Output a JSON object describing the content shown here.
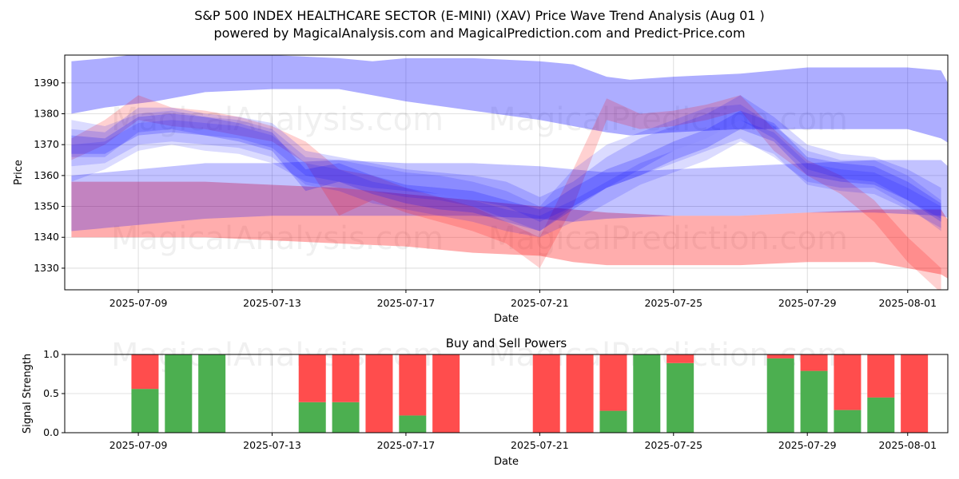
{
  "header": {
    "title_line1": "S&P 500 INDEX HEALTHCARE SECTOR (E-MINI) (XAV) Price Wave Trend Analysis (Aug 01 )",
    "title_line2": "powered by MagicalAnalysis.com and MagicalPrediction.com and Predict-Price.com"
  },
  "watermarks": [
    "MagicalAnalysis.com",
    "MagicalPrediction.com"
  ],
  "chart_data": [
    {
      "type": "area",
      "title": "",
      "xlabel": "Date",
      "ylabel": "Price",
      "xlim": [
        "2025-07-06.8",
        "2025-08-02.2"
      ],
      "ylim": [
        1323,
        1399
      ],
      "x_ticks": [
        "2025-07-09",
        "2025-07-13",
        "2025-07-17",
        "2025-07-21",
        "2025-07-25",
        "2025-07-29",
        "2025-08-01"
      ],
      "y_ticks": [
        1330,
        1340,
        1350,
        1360,
        1370,
        1380,
        1390
      ],
      "grid": true,
      "colors": {
        "blue": "#0000ff",
        "red": "#ff0000"
      },
      "bands": [
        {
          "name": "wide-blue-upper",
          "color": "blue",
          "opacity": 0.32,
          "x": [
            0,
            1,
            2.5,
            4,
            6,
            8,
            9,
            10,
            12,
            14,
            15,
            16,
            16.7,
            18,
            20,
            22,
            24,
            25,
            26,
            26.3
          ],
          "upper": [
            1397,
            1398,
            1400,
            1400,
            1399,
            1398,
            1397,
            1398,
            1398,
            1397,
            1396,
            1392,
            1391,
            1392,
            1393,
            1395,
            1395,
            1395,
            1394,
            1388
          ],
          "lower": [
            1380,
            1382,
            1384,
            1387,
            1388,
            1388,
            1386,
            1384,
            1381,
            1378,
            1376,
            1374,
            1373,
            1374,
            1375,
            1375,
            1375,
            1375,
            1372,
            1370
          ]
        },
        {
          "name": "long-red-lower",
          "color": "red",
          "opacity": 0.32,
          "x": [
            0,
            2,
            4,
            6,
            8,
            10,
            12,
            14,
            15,
            16,
            18,
            20,
            22,
            24,
            26,
            26.3
          ],
          "upper": [
            1358,
            1358,
            1358,
            1357,
            1356,
            1354,
            1352,
            1350,
            1349,
            1348,
            1347,
            1347,
            1348,
            1349,
            1349,
            1344
          ],
          "lower": [
            1340,
            1340,
            1340,
            1339,
            1338,
            1337,
            1335,
            1334,
            1332,
            1331,
            1331,
            1331,
            1332,
            1332,
            1328,
            1326
          ]
        },
        {
          "name": "long-purple-mid",
          "color": "blue",
          "opacity": 0.24,
          "x": [
            0,
            2,
            4,
            6,
            8,
            10,
            12,
            14,
            15,
            16,
            18,
            20,
            22,
            24,
            26,
            26.3
          ],
          "upper": [
            1360,
            1362,
            1364,
            1364,
            1365,
            1364,
            1364,
            1363,
            1362,
            1361,
            1362,
            1363,
            1364,
            1365,
            1365,
            1362
          ],
          "lower": [
            1342,
            1344,
            1346,
            1347,
            1347,
            1347,
            1347,
            1346,
            1345,
            1346,
            1347,
            1347,
            1348,
            1348,
            1347,
            1346
          ]
        },
        {
          "name": "wave-red-a",
          "color": "red",
          "opacity": 0.18,
          "x": [
            0,
            1,
            2,
            3,
            4,
            5,
            6,
            7,
            8,
            9,
            10,
            11,
            12,
            13,
            14,
            15,
            16,
            17,
            18,
            19,
            20,
            21,
            22,
            23,
            24,
            25,
            26
          ],
          "upper": [
            1372,
            1378,
            1386,
            1382,
            1381,
            1379,
            1376,
            1371,
            1362,
            1360,
            1356,
            1353,
            1350,
            1345,
            1340,
            1362,
            1385,
            1380,
            1381,
            1383,
            1386,
            1375,
            1365,
            1360,
            1352,
            1340,
            1330
          ],
          "lower": [
            1365,
            1370,
            1378,
            1376,
            1375,
            1373,
            1371,
            1364,
            1347,
            1352,
            1348,
            1345,
            1342,
            1338,
            1330,
            1350,
            1378,
            1375,
            1376,
            1378,
            1381,
            1368,
            1360,
            1354,
            1345,
            1332,
            1322
          ]
        },
        {
          "name": "wave-blue-a",
          "color": "blue",
          "opacity": 0.16,
          "x": [
            0,
            1,
            2,
            3,
            4,
            5,
            6,
            7,
            8,
            9,
            10,
            11,
            12,
            13,
            14,
            15,
            16,
            17,
            18,
            19,
            20,
            21,
            22,
            23,
            24,
            25,
            26
          ],
          "upper": [
            1375,
            1374,
            1382,
            1382,
            1380,
            1379,
            1377,
            1368,
            1366,
            1364,
            1362,
            1361,
            1360,
            1358,
            1353,
            1358,
            1366,
            1372,
            1376,
            1380,
            1386,
            1379,
            1370,
            1367,
            1366,
            1362,
            1356
          ],
          "lower": [
            1366,
            1366,
            1374,
            1375,
            1373,
            1372,
            1369,
            1360,
            1358,
            1356,
            1355,
            1354,
            1352,
            1350,
            1345,
            1350,
            1356,
            1362,
            1368,
            1372,
            1378,
            1372,
            1362,
            1359,
            1358,
            1352,
            1346
          ]
        },
        {
          "name": "wave-blue-b",
          "color": "blue",
          "opacity": 0.14,
          "x": [
            0,
            1,
            2,
            3,
            4,
            5,
            6,
            7,
            8,
            9,
            10,
            11,
            12,
            13,
            14,
            15,
            16,
            17,
            18,
            19,
            20,
            21,
            22,
            23,
            24,
            25,
            26
          ],
          "upper": [
            1378,
            1376,
            1380,
            1381,
            1379,
            1378,
            1375,
            1366,
            1365,
            1363,
            1361,
            1360,
            1358,
            1355,
            1350,
            1362,
            1370,
            1374,
            1378,
            1382,
            1383,
            1376,
            1368,
            1365,
            1365,
            1360,
            1352
          ],
          "lower": [
            1358,
            1362,
            1368,
            1370,
            1368,
            1367,
            1364,
            1358,
            1356,
            1355,
            1353,
            1352,
            1350,
            1346,
            1342,
            1350,
            1356,
            1360,
            1364,
            1368,
            1372,
            1366,
            1358,
            1356,
            1356,
            1350,
            1342
          ]
        },
        {
          "name": "wave-blue-c",
          "color": "blue",
          "opacity": 0.2,
          "x": [
            0,
            1,
            2,
            3,
            4,
            5,
            6,
            7,
            8,
            9,
            10,
            11,
            12,
            13,
            14,
            15,
            16,
            17,
            18,
            19,
            20,
            21,
            22,
            23,
            24,
            25,
            26
          ],
          "upper": [
            1373,
            1372,
            1379,
            1380,
            1379,
            1377,
            1374,
            1362,
            1364,
            1360,
            1357,
            1356,
            1355,
            1352,
            1349,
            1356,
            1362,
            1366,
            1371,
            1375,
            1381,
            1377,
            1366,
            1364,
            1363,
            1358,
            1351
          ],
          "lower": [
            1367,
            1367,
            1373,
            1374,
            1373,
            1371,
            1368,
            1355,
            1358,
            1354,
            1351,
            1349,
            1348,
            1345,
            1342,
            1349,
            1356,
            1360,
            1365,
            1369,
            1375,
            1371,
            1360,
            1358,
            1357,
            1352,
            1345
          ]
        },
        {
          "name": "wave-blue-d",
          "color": "blue",
          "opacity": 0.14,
          "x": [
            0,
            1,
            2,
            3,
            4,
            5,
            6,
            7,
            8,
            9,
            10,
            11,
            12,
            13,
            14,
            15,
            16,
            17,
            18,
            19,
            20,
            21,
            22,
            23,
            24,
            25,
            26
          ],
          "upper": [
            1370,
            1371,
            1377,
            1378,
            1377,
            1376,
            1373,
            1364,
            1362,
            1358,
            1356,
            1354,
            1352,
            1349,
            1347,
            1352,
            1358,
            1364,
            1368,
            1372,
            1378,
            1374,
            1364,
            1362,
            1361,
            1356,
            1350
          ],
          "lower": [
            1363,
            1364,
            1370,
            1371,
            1370,
            1369,
            1366,
            1357,
            1355,
            1351,
            1349,
            1347,
            1345,
            1342,
            1340,
            1345,
            1351,
            1357,
            1361,
            1365,
            1371,
            1367,
            1357,
            1355,
            1354,
            1349,
            1343
          ]
        }
      ]
    },
    {
      "type": "bar",
      "title": "Buy and Sell Powers",
      "xlabel": "Date",
      "ylabel": "Signal Strength",
      "ylim": [
        0,
        1
      ],
      "y_ticks": [
        0.0,
        0.5,
        1.0
      ],
      "y_tick_labels": [
        "0.0",
        "0.5",
        "1.0"
      ],
      "x_ticks": [
        "2025-07-09",
        "2025-07-13",
        "2025-07-17",
        "2025-07-21",
        "2025-07-25",
        "2025-07-29",
        "2025-08-01"
      ],
      "grid": true,
      "colors": {
        "buy": "#4caf50",
        "sell": "#ff4d4d"
      },
      "series": [
        {
          "name": "Buy",
          "values": [
            0.56,
            1.0,
            1.0,
            0.39,
            0.39,
            0.0,
            0.22,
            0.0,
            0.0,
            0.0,
            0.28,
            1.0,
            0.89,
            0.95,
            0.79,
            0.29,
            0.45,
            0.0
          ]
        },
        {
          "name": "Sell",
          "values": [
            0.44,
            0.0,
            0.0,
            0.61,
            0.61,
            1.0,
            0.78,
            1.0,
            1.0,
            1.0,
            0.72,
            0.0,
            0.11,
            0.05,
            0.21,
            0.71,
            0.55,
            1.0
          ]
        }
      ],
      "categories": [
        "2025-07-09",
        "2025-07-10",
        "2025-07-11",
        "2025-07-14",
        "2025-07-15",
        "2025-07-16",
        "2025-07-17",
        "2025-07-18",
        "2025-07-21",
        "2025-07-22",
        "2025-07-23",
        "2025-07-24",
        "2025-07-25",
        "2025-07-28",
        "2025-07-29",
        "2025-07-30",
        "2025-07-31",
        "2025-08-01"
      ],
      "x_days": [
        2.2,
        3.2,
        4.2,
        7.2,
        8.2,
        9.2,
        10.2,
        11.2,
        14.2,
        15.2,
        16.2,
        17.2,
        18.2,
        21.2,
        22.2,
        23.2,
        24.2,
        25.2
      ]
    }
  ]
}
